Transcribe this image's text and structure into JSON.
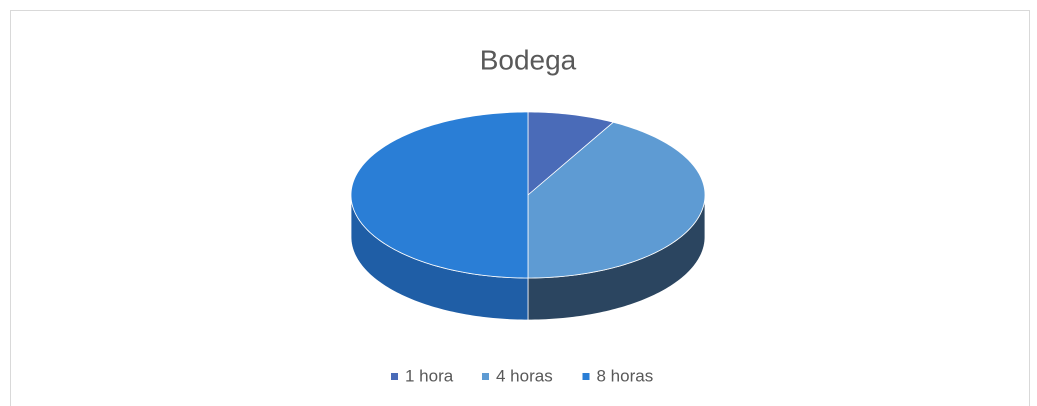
{
  "chart_data": {
    "type": "pie3d",
    "title": "Bodega",
    "categories": [
      "1 hora",
      "4 horas",
      "8 horas"
    ],
    "values": [
      8,
      42,
      50
    ],
    "colors": [
      "#4a6bb8",
      "#5e9bd3",
      "#2a7ed6"
    ],
    "side_colors": [
      "#2e4a86",
      "#2b4560",
      "#1f5ea6"
    ],
    "legend": "bottom"
  }
}
